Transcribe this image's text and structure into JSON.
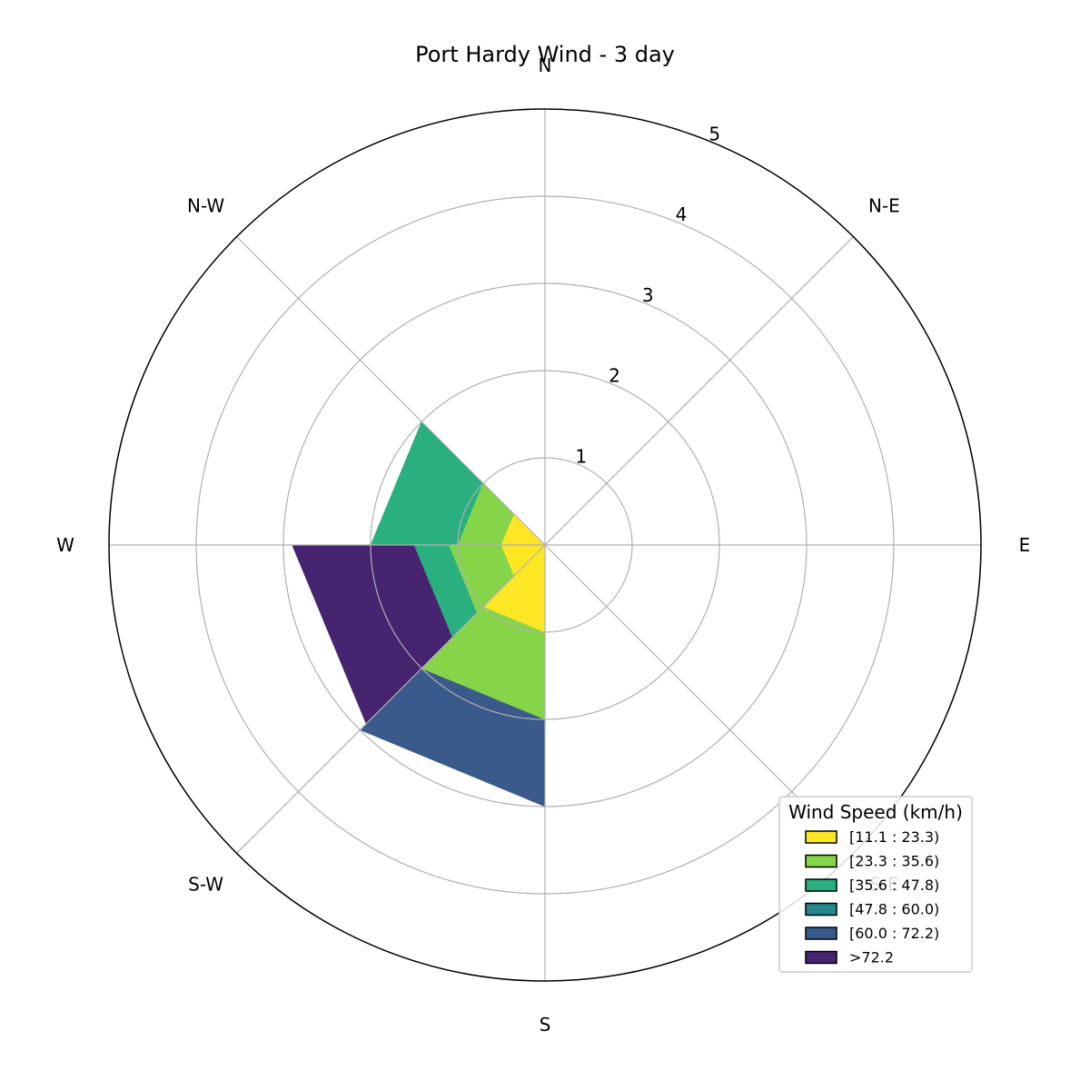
{
  "chart_data": {
    "type": "windrose",
    "title": "Port Hardy Wind - 3 day",
    "directions": [
      "N",
      "N-E",
      "E",
      "S-E",
      "S",
      "S-W",
      "W",
      "N-W"
    ],
    "r_ticks": [
      "1",
      "2",
      "3",
      "4",
      "5"
    ],
    "rlim": [
      0,
      5
    ],
    "grid": true,
    "legend": {
      "title": "Wind Speed (km/h)",
      "placement": "bottom-right",
      "bins": [
        "[11.1 : 23.3)",
        "[23.3 : 35.6)",
        "[35.6 : 47.8)",
        "[47.8 : 60.0)",
        "[60.0 : 72.2)",
        ">72.2"
      ]
    },
    "colors": [
      "#fde725",
      "#86d549",
      "#2ab07f",
      "#25858e",
      "#3a5a8c",
      "#46246f"
    ],
    "series": [
      {
        "name": "[11.1 : 23.3)",
        "values": [
          0,
          0,
          0,
          0,
          1.0,
          0.5,
          0.5,
          0
        ]
      },
      {
        "name": "[23.3 : 35.6)",
        "values": [
          0,
          0,
          0,
          0,
          1.0,
          0.6,
          0.5,
          0
        ]
      },
      {
        "name": "[35.6 : 47.8)",
        "values": [
          0,
          0,
          0,
          0,
          0,
          0.4,
          1.0,
          0
        ]
      },
      {
        "name": "[47.8 : 60.0)",
        "values": [
          0,
          0,
          0,
          0,
          0,
          0,
          0,
          0
        ]
      },
      {
        "name": "[60.0 : 72.2)",
        "values": [
          0,
          0,
          0,
          0,
          1.0,
          0,
          0,
          0
        ]
      },
      {
        "name": ">72.2",
        "values": [
          0,
          0,
          0,
          0,
          0,
          1.4,
          0,
          0
        ]
      }
    ]
  }
}
